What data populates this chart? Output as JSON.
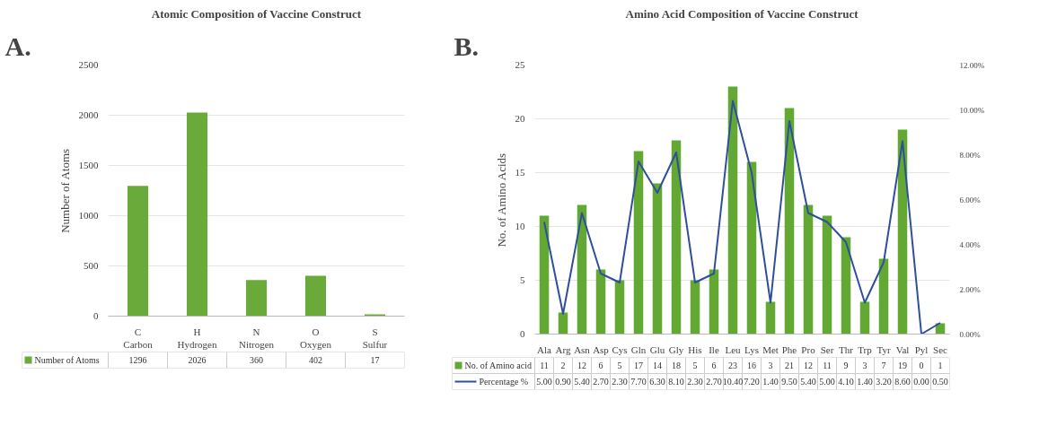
{
  "chart_data": [
    {
      "type": "bar",
      "title": "Atomic Composition of Vaccine Construct",
      "annotations": [
        "A."
      ],
      "ylabel": "Number of Atoms",
      "categories": [
        "C\nCarbon",
        "H\nHydrogen",
        "N\nNitrogen",
        "O\nOxygen",
        "S\nSulfur"
      ],
      "series": [
        {
          "name": "Number of Atoms",
          "color": "#6aaa3a",
          "values": [
            1296,
            2026,
            360,
            402,
            17
          ],
          "value_labels": [
            "1296",
            "2026",
            "360",
            "402",
            "17"
          ]
        }
      ],
      "ylim": [
        0,
        2500
      ],
      "yticks": [
        0,
        500,
        1000,
        1500,
        2000,
        2500
      ],
      "grid": "y",
      "legend": "bottom"
    },
    {
      "type": "bar",
      "title": "Amino Acid Composition of Vaccine Construct",
      "annotations": [
        "B."
      ],
      "ylabel": "No. of Amino Acids",
      "categories": [
        "Ala",
        "Arg",
        "Asn",
        "Asp",
        "Cys",
        "Gln",
        "Glu",
        "Gly",
        "His",
        "Ile",
        "Leu",
        "Lys",
        "Met",
        "Phe",
        "Pro",
        "Ser",
        "Thr",
        "Trp",
        "Tyr",
        "Val",
        "Pyl",
        "Sec"
      ],
      "series": [
        {
          "name": "No. of Amino acid",
          "color": "#62a832",
          "values": [
            11,
            2,
            12,
            6,
            5,
            17,
            14,
            18,
            5,
            6,
            23,
            16,
            3,
            21,
            12,
            11,
            9,
            3,
            7,
            19,
            0,
            1
          ],
          "value_labels": [
            "11",
            "2",
            "12",
            "6",
            "5",
            "17",
            "14",
            "18",
            "5",
            "6",
            "23",
            "16",
            "3",
            "21",
            "12",
            "11",
            "9",
            "3",
            "7",
            "19",
            "0",
            "1"
          ]
        },
        {
          "name": "Percentage %",
          "type": "line",
          "axis": "y2",
          "color": "#2f4f9a",
          "values": [
            5.0,
            0.9,
            5.4,
            2.7,
            2.3,
            7.7,
            6.3,
            8.1,
            2.3,
            2.7,
            10.4,
            7.2,
            1.4,
            9.5,
            5.4,
            5.0,
            4.1,
            1.4,
            3.2,
            8.6,
            0.0,
            0.5
          ],
          "value_labels": [
            "5.00",
            "0.90",
            "5.40",
            "2.70",
            "2.30",
            "7.70",
            "6.30",
            "8.10",
            "2.30",
            "2.70",
            "10.40",
            "7.20",
            "1.40",
            "9.50",
            "5.40",
            "5.00",
            "4.10",
            "1.40",
            "3.20",
            "8.60",
            "0.00",
            "0.50"
          ]
        }
      ],
      "ylim": [
        0,
        25
      ],
      "yticks": [
        0,
        5,
        10,
        15,
        20,
        25
      ],
      "y2lim": [
        0,
        12
      ],
      "y2ticks": [
        {
          "value": 0,
          "label": "0.00%"
        },
        {
          "value": 2,
          "label": "2.00%"
        },
        {
          "value": 4,
          "label": "4.00%"
        },
        {
          "value": 6,
          "label": "6.00%"
        },
        {
          "value": 8,
          "label": "8.00%"
        },
        {
          "value": 10,
          "label": "10.00%"
        },
        {
          "value": 12,
          "label": "12.00%"
        }
      ],
      "grid": "y",
      "legend": "bottom"
    }
  ]
}
